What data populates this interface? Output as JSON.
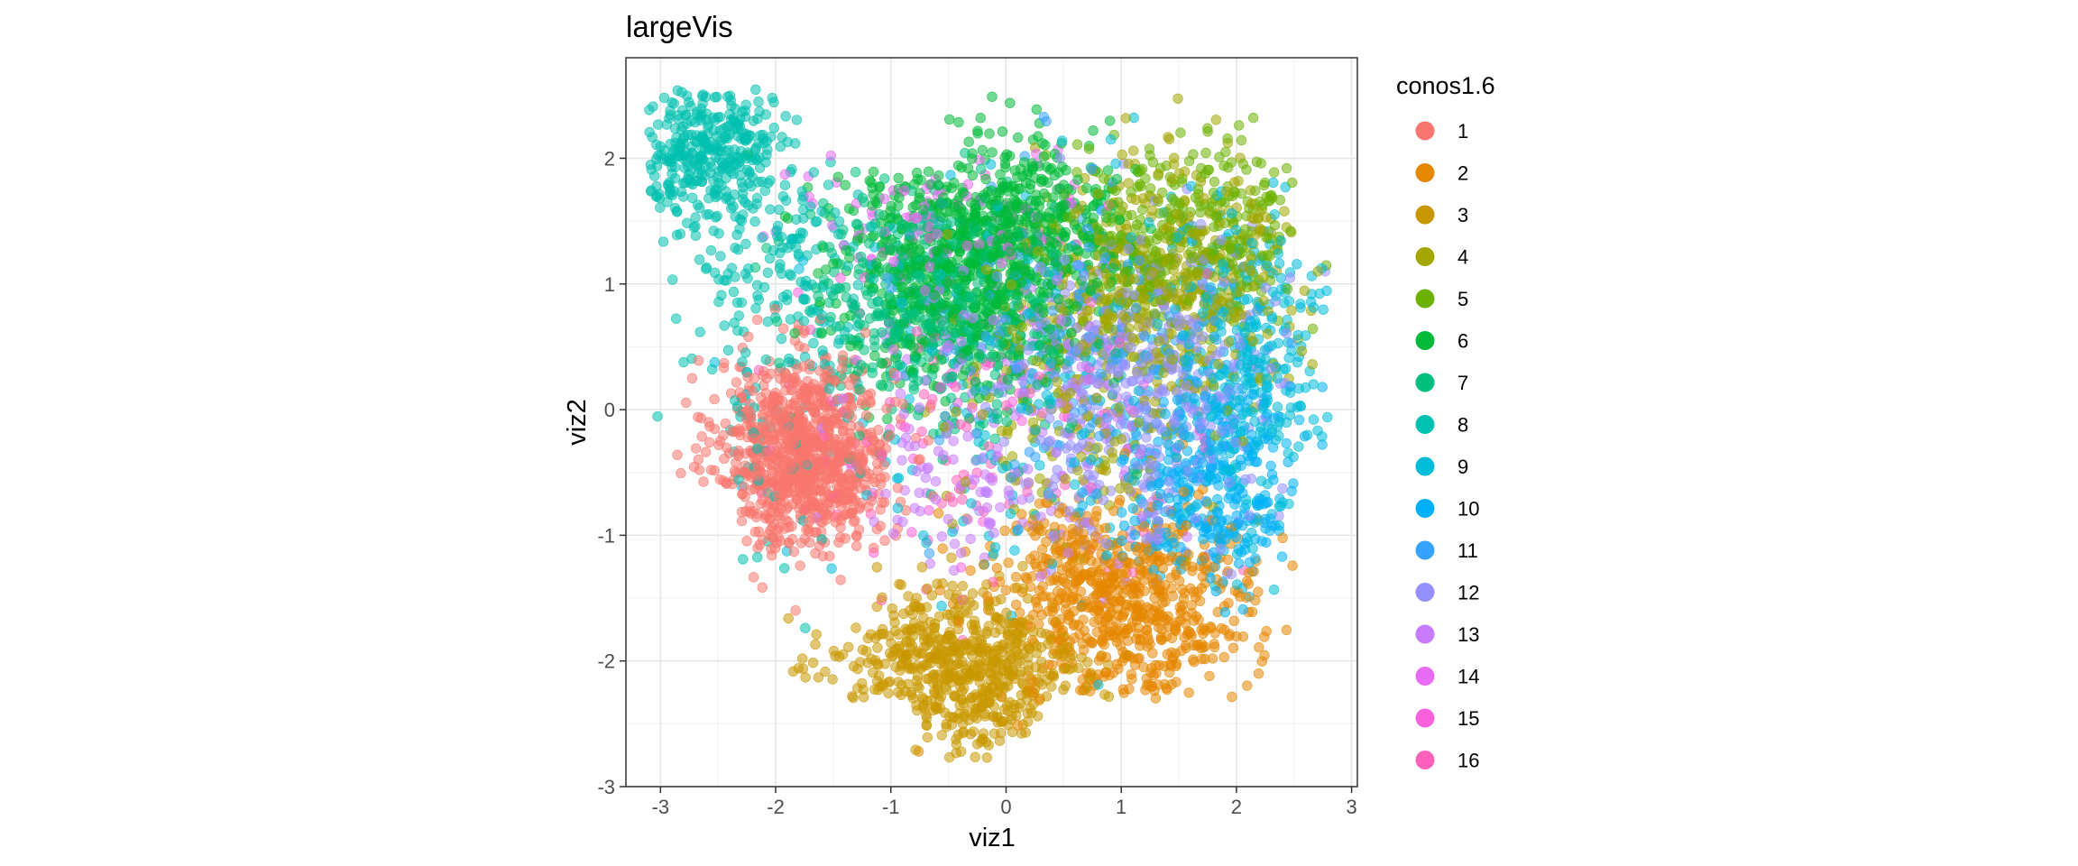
{
  "chart_data": {
    "type": "scatter",
    "title": "largeVis",
    "xlabel": "viz1",
    "ylabel": "viz2",
    "xlim": [
      -3.3,
      3.05
    ],
    "ylim": [
      -3.0,
      2.8
    ],
    "xticks": [
      -3,
      -2,
      -1,
      0,
      1,
      2,
      3
    ],
    "yticks": [
      -3,
      -2,
      -1,
      0,
      1,
      2
    ],
    "grid": true,
    "point_alpha": 0.55,
    "legend": {
      "title": "conos1.6",
      "position": "right"
    },
    "series": [
      {
        "name": "1",
        "color": "#F8766D",
        "clusters": [
          [
            -1.75,
            -0.35,
            0.38,
            0.38,
            950
          ]
        ]
      },
      {
        "name": "2",
        "color": "#E58700",
        "clusters": [
          [
            1.2,
            -1.6,
            0.5,
            0.4,
            520
          ],
          [
            0.5,
            -1.3,
            0.4,
            0.3,
            180
          ]
        ]
      },
      {
        "name": "3",
        "color": "#C99800",
        "clusters": [
          [
            -0.4,
            -2.1,
            0.55,
            0.33,
            620
          ]
        ]
      },
      {
        "name": "4",
        "color": "#A3A500",
        "clusters": [
          [
            1.4,
            1.1,
            0.6,
            0.5,
            420
          ],
          [
            0.7,
            0.2,
            0.6,
            0.6,
            220
          ]
        ]
      },
      {
        "name": "5",
        "color": "#6BB100",
        "clusters": [
          [
            1.6,
            1.4,
            0.5,
            0.35,
            330
          ]
        ]
      },
      {
        "name": "6",
        "color": "#00BA38",
        "clusters": [
          [
            -0.35,
            1.15,
            0.55,
            0.45,
            750
          ],
          [
            0.3,
            1.5,
            0.4,
            0.3,
            250
          ]
        ]
      },
      {
        "name": "7",
        "color": "#00BF7D",
        "clusters": [
          [
            -0.6,
            0.8,
            0.55,
            0.5,
            420
          ]
        ]
      },
      {
        "name": "8",
        "color": "#00C0AF",
        "clusters": [
          [
            -2.6,
            2.05,
            0.3,
            0.28,
            320
          ],
          [
            -1.9,
            1.2,
            0.45,
            0.45,
            170
          ],
          [
            -2.1,
            -0.2,
            0.45,
            0.7,
            60
          ]
        ]
      },
      {
        "name": "9",
        "color": "#00BCD8",
        "clusters": [
          [
            2.1,
            0.3,
            0.35,
            0.65,
            320
          ],
          [
            0.1,
            0.1,
            0.9,
            0.9,
            220
          ]
        ]
      },
      {
        "name": "10",
        "color": "#00B0F6",
        "clusters": [
          [
            1.8,
            -0.6,
            0.45,
            0.4,
            320
          ]
        ]
      },
      {
        "name": "11",
        "color": "#35A2FF",
        "clusters": [
          [
            0.5,
            0.5,
            0.8,
            0.6,
            160
          ]
        ]
      },
      {
        "name": "12",
        "color": "#9590FF",
        "clusters": [
          [
            1.2,
            0.2,
            0.6,
            0.6,
            430
          ]
        ]
      },
      {
        "name": "13",
        "color": "#C77CFF",
        "clusters": [
          [
            0.0,
            -0.1,
            0.7,
            0.6,
            220
          ]
        ]
      },
      {
        "name": "14",
        "color": "#E76BF3",
        "clusters": [
          [
            -0.5,
            1.5,
            0.6,
            0.25,
            90
          ]
        ]
      },
      {
        "name": "15",
        "color": "#FA62DB",
        "clusters": [
          [
            0.0,
            0.3,
            0.9,
            0.7,
            70
          ]
        ]
      },
      {
        "name": "16",
        "color": "#FF62BC",
        "clusters": [
          [
            -0.6,
            -0.4,
            0.8,
            0.5,
            70
          ]
        ]
      }
    ]
  }
}
